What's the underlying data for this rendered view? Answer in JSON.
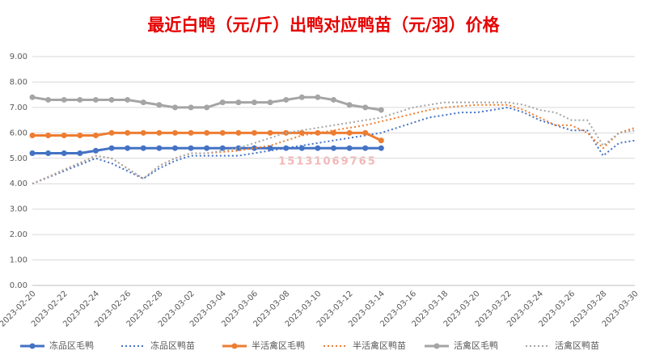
{
  "chart_data": {
    "type": "line",
    "title": "最近白鸭（元/斤）出鸭对应鸭苗（元/羽）价格",
    "watermark": "15131069765",
    "categories": [
      "2023-02-20",
      null,
      "2023-02-22",
      null,
      "2023-02-24",
      null,
      "2023-02-26",
      null,
      "2023-02-28",
      null,
      "2023-03-02",
      null,
      "2023-03-04",
      null,
      "2023-03-06",
      null,
      "2023-03-08",
      null,
      "2023-03-10",
      null,
      "2023-03-12",
      null,
      "2023-03-14",
      null,
      "2023-03-16",
      null,
      "2023-03-18",
      null,
      "2023-03-20",
      null,
      "2023-03-22",
      null,
      "2023-03-24",
      null,
      "2023-03-26",
      null,
      "2023-03-28",
      null,
      "2023-03-30"
    ],
    "ylim": [
      0,
      9
    ],
    "yticks": [
      {
        "value": 0,
        "label": "0.00"
      },
      {
        "value": 1,
        "label": "1.00"
      },
      {
        "value": 2,
        "label": "2.00"
      },
      {
        "value": 3,
        "label": "3.00"
      },
      {
        "value": 4,
        "label": "4.00"
      },
      {
        "value": 5,
        "label": "5.00"
      },
      {
        "value": 6,
        "label": "6.00"
      },
      {
        "value": 7,
        "label": "7.00"
      },
      {
        "value": 8,
        "label": "8.00"
      },
      {
        "value": 9,
        "label": "9.00"
      }
    ],
    "grid": true,
    "legend": "bottom",
    "series": [
      {
        "name": "冻品区毛鸭",
        "color": "#4472c4",
        "style": "solid",
        "markers": true,
        "values": [
          5.2,
          5.2,
          5.2,
          5.2,
          5.3,
          5.4,
          5.4,
          5.4,
          5.4,
          5.4,
          5.4,
          5.4,
          5.4,
          5.4,
          5.4,
          5.4,
          5.4,
          5.4,
          5.4,
          5.4,
          5.4,
          5.4,
          5.4,
          null,
          null,
          null,
          null,
          null,
          null,
          null,
          null,
          null,
          null,
          null,
          null,
          null,
          null,
          null,
          null
        ]
      },
      {
        "name": "冻品区鸭苗",
        "color": "#4472c4",
        "style": "dotted",
        "markers": false,
        "values": [
          4.0,
          4.25,
          4.5,
          4.75,
          5.0,
          4.8,
          4.5,
          4.2,
          4.6,
          4.9,
          5.1,
          5.1,
          5.1,
          5.1,
          5.2,
          5.3,
          5.4,
          5.5,
          5.6,
          5.7,
          5.8,
          5.9,
          6.0,
          6.2,
          6.4,
          6.6,
          6.7,
          6.8,
          6.8,
          6.9,
          7.0,
          6.8,
          6.5,
          6.3,
          6.1,
          6.1,
          5.1,
          5.6,
          5.7
        ]
      },
      {
        "name": "半活禽区毛鸭",
        "color": "#ed7d31",
        "style": "solid",
        "markers": true,
        "values": [
          5.9,
          5.9,
          5.9,
          5.9,
          5.9,
          6.0,
          6.0,
          6.0,
          6.0,
          6.0,
          6.0,
          6.0,
          6.0,
          6.0,
          6.0,
          6.0,
          6.0,
          6.0,
          6.0,
          6.0,
          6.0,
          6.0,
          5.7,
          null,
          null,
          null,
          null,
          null,
          null,
          null,
          null,
          null,
          null,
          null,
          null,
          null,
          null,
          null,
          null
        ]
      },
      {
        "name": "半活禽区鸭苗",
        "color": "#ed7d31",
        "style": "dotted",
        "markers": false,
        "values": [
          4.0,
          4.27,
          4.55,
          4.82,
          5.1,
          5.0,
          4.6,
          4.2,
          4.7,
          5.0,
          5.2,
          5.2,
          5.25,
          5.3,
          5.4,
          5.5,
          5.7,
          5.9,
          6.0,
          6.1,
          6.2,
          6.3,
          6.45,
          6.6,
          6.75,
          6.9,
          7.0,
          7.05,
          7.1,
          7.1,
          7.1,
          6.9,
          6.6,
          6.3,
          6.3,
          6.0,
          5.4,
          6.0,
          6.2
        ]
      },
      {
        "name": "活禽区毛鸭",
        "color": "#a5a5a5",
        "style": "solid",
        "markers": true,
        "values": [
          7.4,
          7.3,
          7.3,
          7.3,
          7.3,
          7.3,
          7.3,
          7.2,
          7.1,
          7.0,
          7.0,
          7.0,
          7.2,
          7.2,
          7.2,
          7.2,
          7.3,
          7.4,
          7.4,
          7.3,
          7.1,
          7.0,
          6.9,
          null,
          null,
          null,
          null,
          null,
          null,
          null,
          null,
          null,
          null,
          null,
          null,
          null,
          null,
          null,
          null
        ]
      },
      {
        "name": "活禽区鸭苗",
        "color": "#a5a5a5",
        "style": "dotted",
        "markers": false,
        "values": [
          4.0,
          4.27,
          4.55,
          4.82,
          5.1,
          5.0,
          4.6,
          4.2,
          4.7,
          5.0,
          5.2,
          5.2,
          5.3,
          5.4,
          5.6,
          5.8,
          6.0,
          6.1,
          6.2,
          6.3,
          6.4,
          6.5,
          6.6,
          6.8,
          7.0,
          7.1,
          7.2,
          7.2,
          7.2,
          7.2,
          7.2,
          7.1,
          6.9,
          6.8,
          6.5,
          6.5,
          5.5,
          6.0,
          6.1
        ]
      }
    ]
  }
}
